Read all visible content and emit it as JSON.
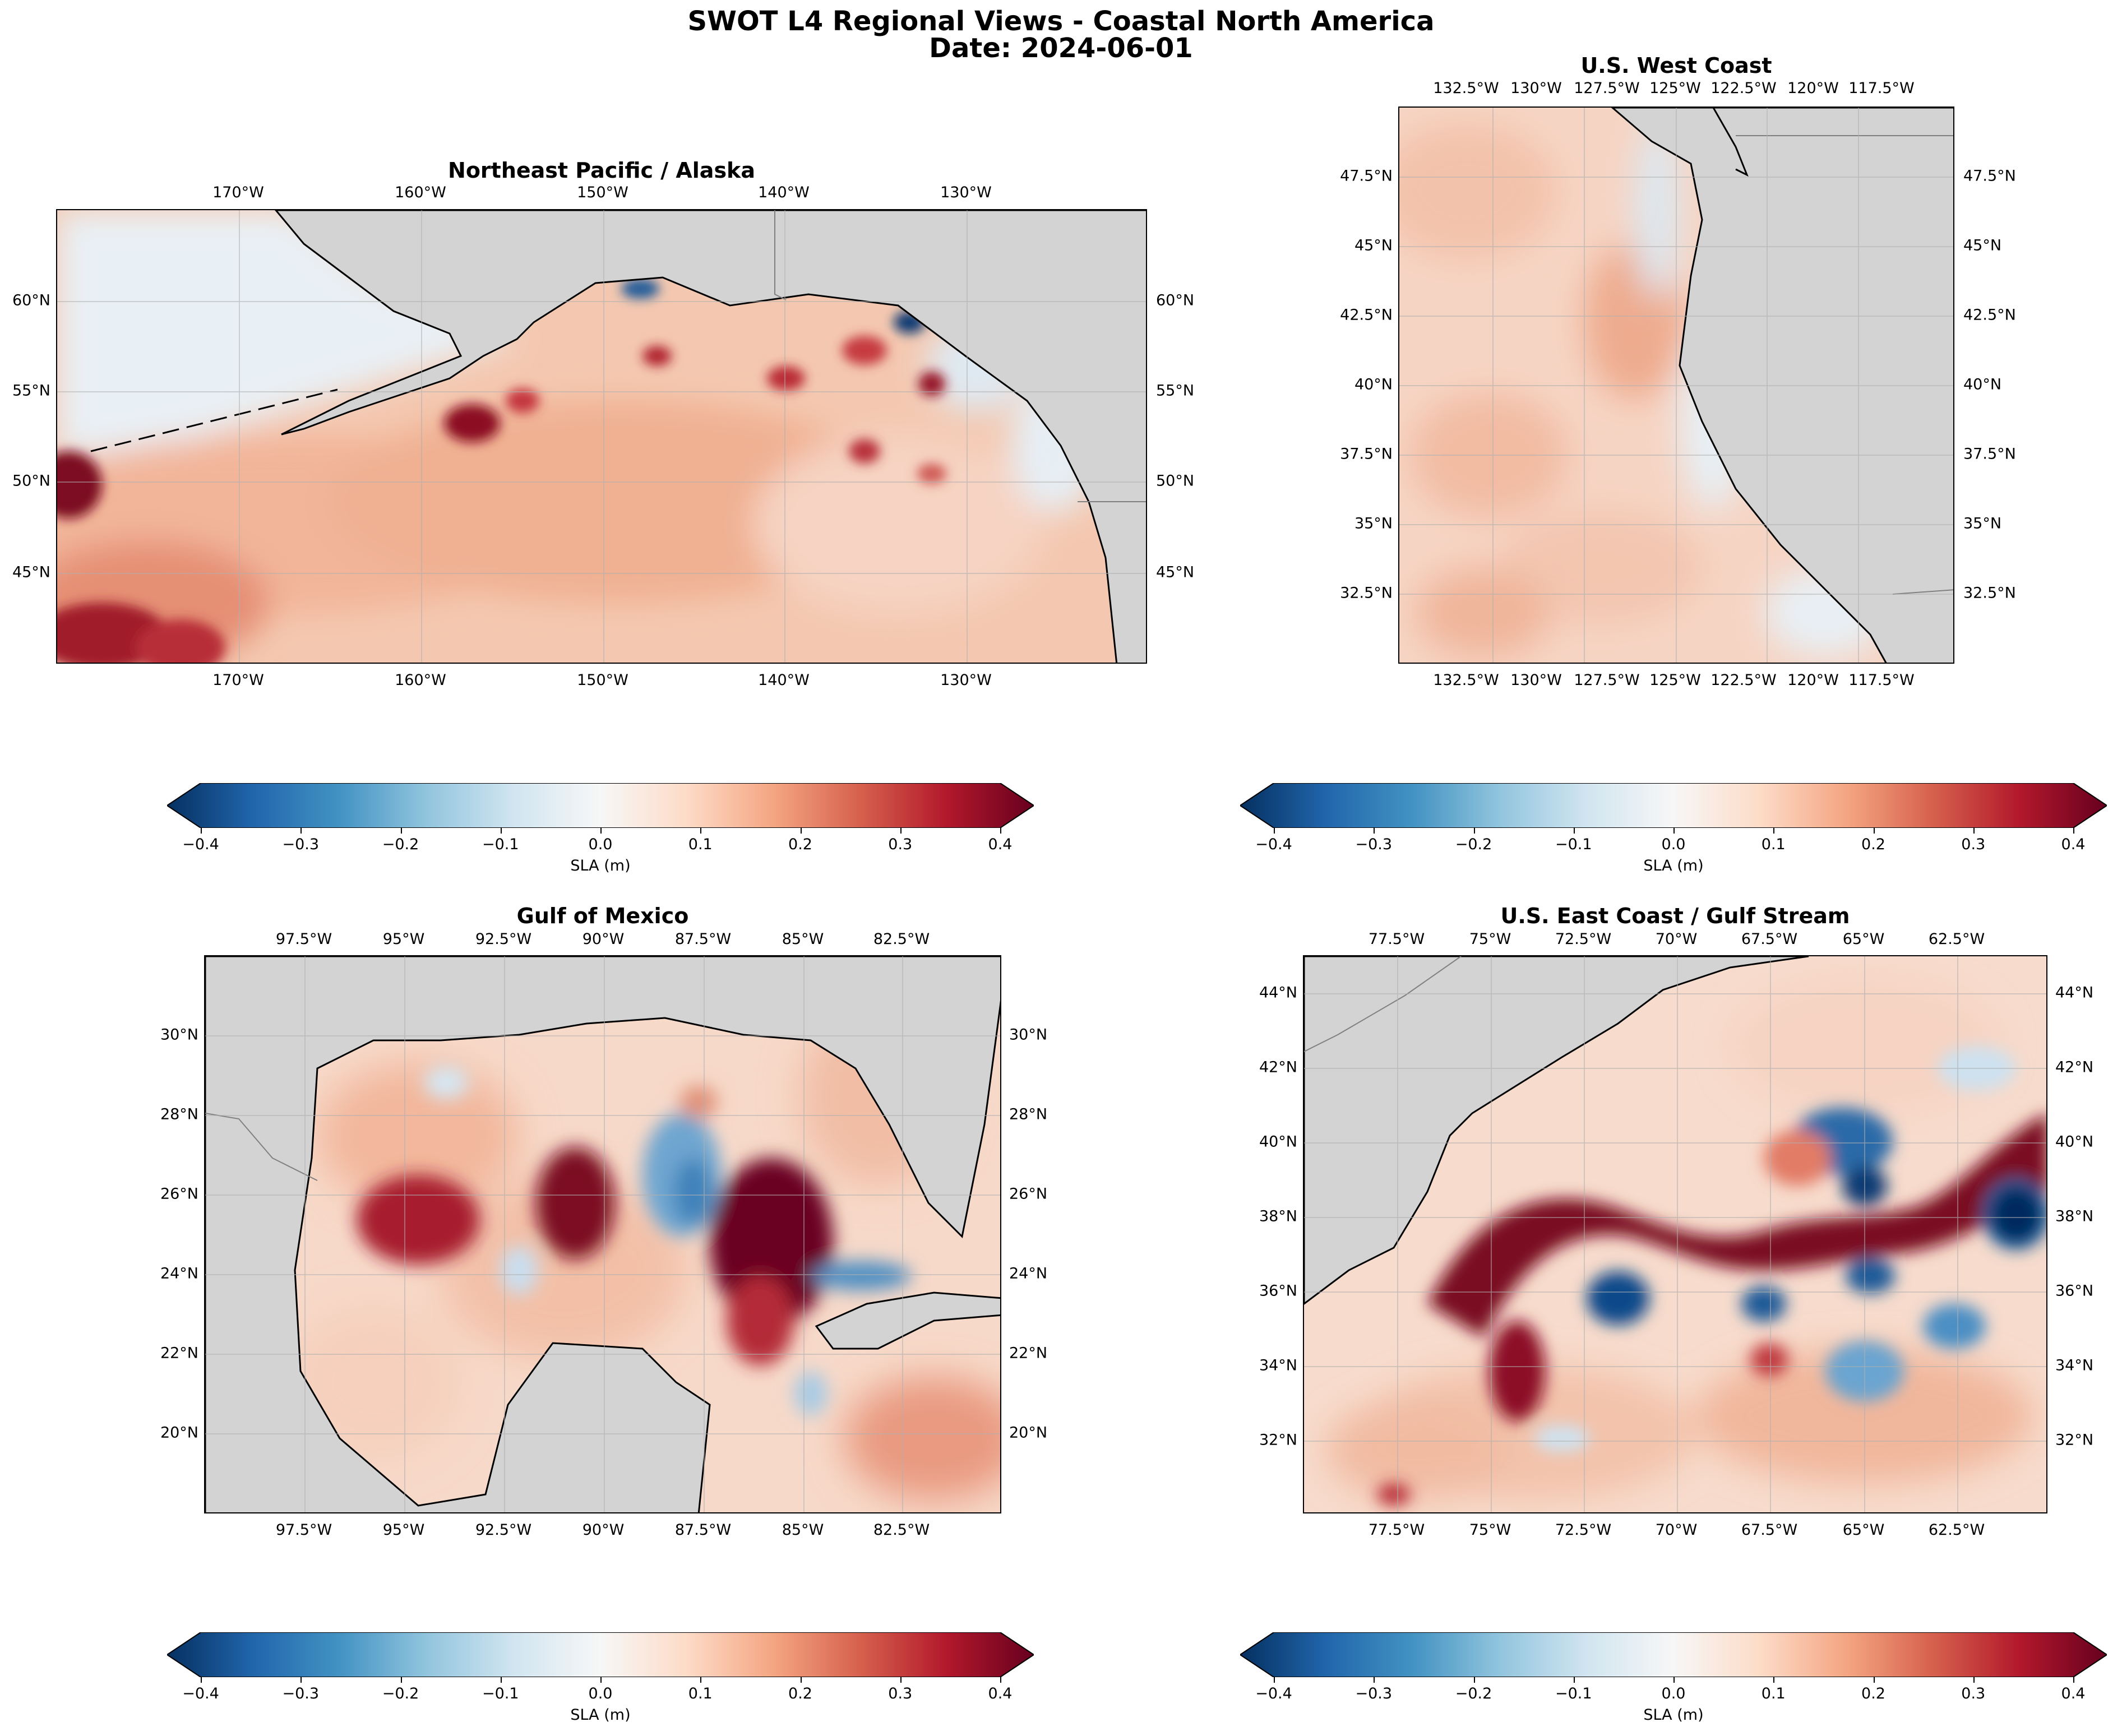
{
  "figure": {
    "title_line1": "SWOT L4 Regional Views - Coastal North America",
    "title_line2": "Date: 2024-06-01"
  },
  "colorbar": {
    "label": "SLA (m)",
    "ticks": [
      "−0.4",
      "−0.3",
      "−0.2",
      "−0.1",
      "0.0",
      "0.1",
      "0.2",
      "0.3",
      "0.4"
    ],
    "min": -0.4,
    "max": 0.4,
    "colormap": "RdBu_r",
    "extend": "both"
  },
  "panels": [
    {
      "title": "Northeast Pacific / Alaska",
      "lon_labels": [
        "170°W",
        "160°W",
        "150°W",
        "140°W",
        "130°W"
      ],
      "lat_labels": [
        "60°N",
        "55°N",
        "50°N",
        "45°N"
      ]
    },
    {
      "title": "U.S. West Coast",
      "lon_labels": [
        "132.5°W",
        "130°W",
        "127.5°W",
        "125°W",
        "122.5°W",
        "120°W",
        "117.5°W"
      ],
      "lat_labels": [
        "47.5°N",
        "45°N",
        "42.5°N",
        "40°N",
        "37.5°N",
        "35°N",
        "32.5°N"
      ]
    },
    {
      "title": "Gulf of Mexico",
      "lon_labels": [
        "97.5°W",
        "95°W",
        "92.5°W",
        "90°W",
        "87.5°W",
        "85°W",
        "82.5°W"
      ],
      "lat_labels": [
        "30°N",
        "28°N",
        "26°N",
        "24°N",
        "22°N",
        "20°N"
      ]
    },
    {
      "title": "U.S. East Coast / Gulf Stream",
      "lon_labels": [
        "77.5°W",
        "75°W",
        "72.5°W",
        "70°W",
        "67.5°W",
        "65°W",
        "62.5°W"
      ],
      "lat_labels": [
        "44°N",
        "42°N",
        "40°N",
        "38°N",
        "36°N",
        "34°N",
        "32°N"
      ]
    }
  ],
  "colors": {
    "land": "#d3d3d3",
    "coastline": "#000000",
    "gridline": "#b0b0b0"
  }
}
